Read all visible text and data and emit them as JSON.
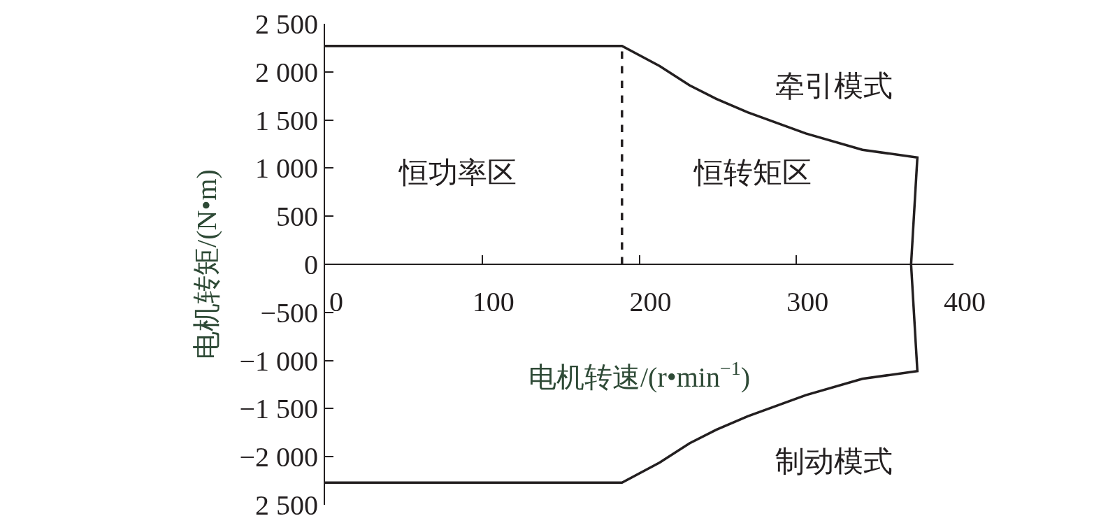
{
  "chart_data": {
    "type": "line",
    "xlabel": "电机转速/(r•min$^{−1}$)",
    "ylabel": "电机转矩/(N•m)",
    "xlim": [
      0,
      400
    ],
    "xticks": [
      0,
      100,
      200,
      300,
      400
    ],
    "ylim": [
      -2500,
      2500
    ],
    "yticks": [
      {
        "value": -2500,
        "label": "2 500"
      },
      {
        "value": -2000,
        "label": "−2 000"
      },
      {
        "value": -1500,
        "label": "−1 500"
      },
      {
        "value": -1000,
        "label": "−1 000"
      },
      {
        "value": -500,
        "label": "−500"
      },
      0,
      500,
      {
        "value": 1000,
        "label": "1 000"
      },
      {
        "value": 1500,
        "label": "1 500"
      },
      {
        "value": 2000,
        "label": "2 000"
      },
      {
        "value": 2500,
        "label": "2 500"
      }
    ],
    "series": [
      {
        "color": "#231f20",
        "line_style": "solid",
        "x": [
          0,
          189,
          213,
          232,
          249,
          269,
          306,
          342,
          377,
          373,
          377,
          342,
          306,
          269,
          249,
          232,
          213,
          189,
          0
        ],
        "values": [
          2270,
          2270,
          2060,
          1860,
          1720,
          1580,
          1360,
          1190,
          1110,
          0,
          -1110,
          -1190,
          -1360,
          -1580,
          -1720,
          -1860,
          -2060,
          -2270,
          -2270
        ]
      },
      {
        "color": "#231f20",
        "line_style": "dashed",
        "x": [
          189,
          189
        ],
        "values": [
          0,
          2270
        ]
      }
    ],
    "annotations": [
      "恒功率区",
      "恒转矩区",
      "牵引模式",
      "制动模式"
    ],
    "marker": "none"
  }
}
